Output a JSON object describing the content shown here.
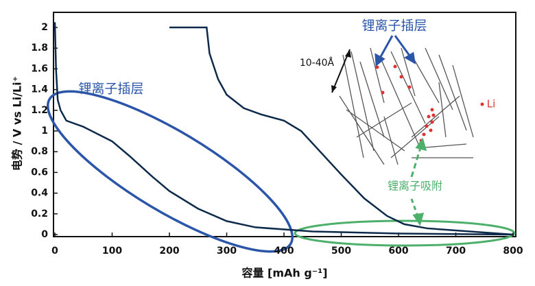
{
  "chart_data": {
    "type": "line",
    "x_label": "容量 [mAh g⁻¹]",
    "y_label": "电势 / V vs Li/Li⁺",
    "xlim": [
      0,
      800
    ],
    "ylim": [
      0,
      2.1
    ],
    "xticks": [
      0,
      100,
      200,
      300,
      400,
      500,
      600,
      700,
      800
    ],
    "yticks": [
      0,
      0.2,
      0.4,
      0.6,
      0.8,
      1,
      1.2,
      1.4,
      1.6,
      1.8,
      2
    ],
    "series": [
      {
        "color": "#0d2a4a",
        "x": [
          0,
          2,
          5,
          10,
          20,
          50,
          100,
          130,
          170,
          200,
          250,
          300,
          350,
          450,
          600,
          800
        ],
        "values": [
          2.05,
          1.6,
          1.3,
          1.2,
          1.1,
          1.04,
          0.9,
          0.76,
          0.56,
          0.42,
          0.25,
          0.13,
          0.07,
          0.03,
          0.01,
          0
        ]
      },
      {
        "color": "#0d2a4a",
        "x": [
          200,
          265,
          270,
          285,
          300,
          330,
          360,
          400,
          430,
          460,
          500,
          540,
          580,
          610,
          650,
          700,
          800
        ],
        "values": [
          2,
          2,
          1.75,
          1.5,
          1.35,
          1.22,
          1.16,
          1.1,
          1.0,
          0.82,
          0.58,
          0.35,
          0.18,
          0.1,
          0.06,
          0.04,
          0
        ]
      }
    ],
    "annotations": [
      "锂离子插层",
      "锂离子插层",
      "锂离子吸附",
      "10-40Å",
      "Li"
    ]
  }
}
